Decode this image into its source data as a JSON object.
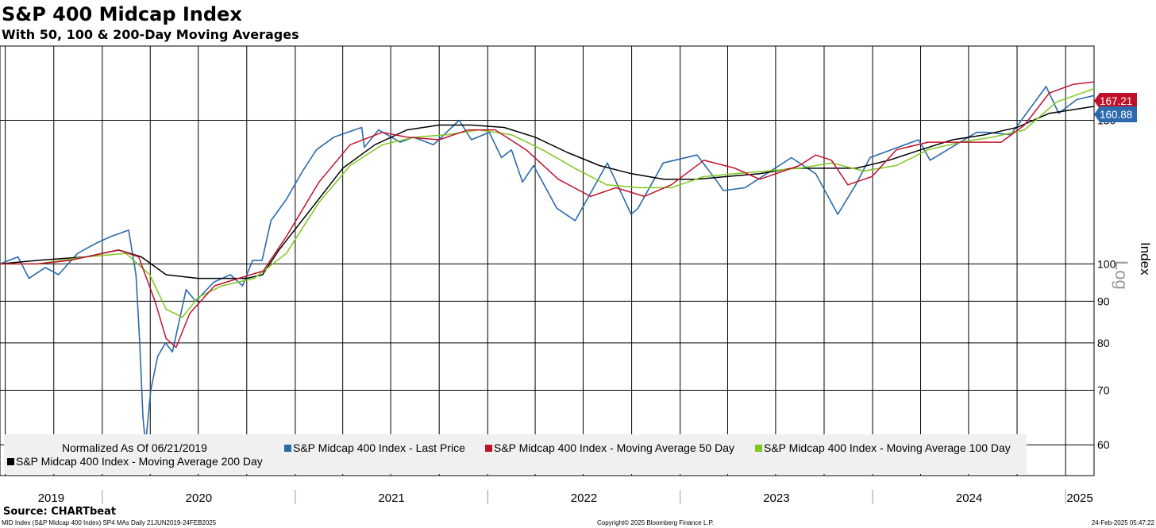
{
  "chart_data": {
    "type": "line",
    "title": "S&P 400 Midcap Index",
    "subtitle": "With 50, 100 & 200-Day Moving Averages",
    "ylabel": "Index",
    "yscale": "log",
    "yscale_label": "Log",
    "ylim": [
      55,
      185
    ],
    "yticks": [
      60,
      70,
      80,
      90,
      100,
      150
    ],
    "x_tick_labels": [
      "2019",
      "2020",
      "2021",
      "2022",
      "2023",
      "2024",
      "2025"
    ],
    "xlim": [
      "2019-06-21",
      "2025-02-24"
    ],
    "grid": true,
    "legend_position": "bottom-left",
    "normalization_note": "Normalized As Of 06/21/2019",
    "series": [
      {
        "name": "S&P Midcap 400 Index - Last Price",
        "color": "#2a6aad",
        "last_value": "160.88",
        "x": [
          "2019-06-21",
          "2019-07-25",
          "2019-08-15",
          "2019-09-15",
          "2019-10-10",
          "2019-11-15",
          "2019-12-20",
          "2020-01-17",
          "2020-02-20",
          "2020-03-05",
          "2020-03-12",
          "2020-03-18",
          "2020-03-23",
          "2020-04-02",
          "2020-04-15",
          "2020-04-30",
          "2020-05-13",
          "2020-06-08",
          "2020-06-26",
          "2020-07-31",
          "2020-08-31",
          "2020-09-23",
          "2020-10-12",
          "2020-10-30",
          "2020-11-16",
          "2020-12-15",
          "2021-01-15",
          "2021-02-10",
          "2021-03-15",
          "2021-05-07",
          "2021-05-12",
          "2021-06-08",
          "2021-07-19",
          "2021-08-13",
          "2021-09-20",
          "2021-11-08",
          "2021-12-01",
          "2022-01-04",
          "2022-01-27",
          "2022-02-15",
          "2022-03-08",
          "2022-03-29",
          "2022-05-12",
          "2022-06-16",
          "2022-08-16",
          "2022-09-30",
          "2022-10-13",
          "2022-11-30",
          "2023-02-02",
          "2023-03-13",
          "2023-03-24",
          "2023-05-04",
          "2023-07-31",
          "2023-09-15",
          "2023-10-27",
          "2023-11-30",
          "2023-12-27",
          "2024-03-28",
          "2024-04-19",
          "2024-07-16",
          "2024-08-05",
          "2024-09-19",
          "2024-11-25",
          "2024-12-19",
          "2025-01-22",
          "2025-02-24"
        ],
        "y": [
          100,
          102,
          96,
          99,
          97,
          103,
          106,
          108,
          110,
          97,
          80,
          65,
          60,
          70,
          77,
          80,
          78,
          93,
          90,
          95,
          97,
          94,
          101,
          101,
          113,
          120,
          130,
          138,
          143,
          147,
          139,
          146,
          141,
          143,
          140,
          150,
          142,
          145,
          135,
          138,
          126,
          132,
          117,
          113,
          133,
          115,
          117,
          133,
          136,
          126,
          123,
          124,
          135,
          129,
          115,
          125,
          135,
          142,
          134,
          145,
          145,
          144,
          165,
          153,
          159,
          160.88
        ]
      },
      {
        "name": "S&P Midcap 400 Index - Moving Average 50 Day",
        "color": "#c0112b",
        "last_value": "167.21",
        "x": [
          "2019-06-21",
          "2019-09-01",
          "2019-11-01",
          "2020-02-01",
          "2020-03-10",
          "2020-04-10",
          "2020-05-01",
          "2020-05-20",
          "2020-06-15",
          "2020-08-01",
          "2020-09-15",
          "2020-11-01",
          "2020-12-15",
          "2021-02-15",
          "2021-04-15",
          "2021-06-15",
          "2021-08-01",
          "2021-10-01",
          "2021-11-25",
          "2022-01-15",
          "2022-03-15",
          "2022-05-15",
          "2022-07-15",
          "2022-09-01",
          "2022-10-25",
          "2022-12-15",
          "2023-02-15",
          "2023-04-15",
          "2023-06-01",
          "2023-08-15",
          "2023-09-15",
          "2023-10-15",
          "2023-11-15",
          "2023-12-31",
          "2024-02-15",
          "2024-04-15",
          "2024-06-30",
          "2024-09-01",
          "2024-10-15",
          "2024-12-01",
          "2025-01-15",
          "2025-02-24"
        ],
        "y": [
          100,
          100,
          101,
          104,
          102,
          90,
          81,
          79,
          87,
          94,
          96,
          98,
          108,
          126,
          140,
          145,
          143,
          142,
          146,
          146,
          138,
          127,
          121,
          124,
          121,
          125,
          134,
          131,
          127,
          132,
          136,
          134,
          125,
          128,
          138,
          141,
          141,
          141,
          148,
          162,
          166,
          167.21
        ]
      },
      {
        "name": "S&P Midcap 400 Index - Moving Average 100 Day",
        "color": "#7ec81e",
        "last_value": "",
        "x": [
          "2019-06-21",
          "2019-09-01",
          "2019-12-01",
          "2020-02-15",
          "2020-03-31",
          "2020-05-01",
          "2020-06-01",
          "2020-07-01",
          "2020-08-15",
          "2020-10-15",
          "2020-12-15",
          "2021-02-15",
          "2021-04-15",
          "2021-06-15",
          "2021-08-15",
          "2021-10-15",
          "2021-12-15",
          "2022-02-15",
          "2022-04-15",
          "2022-06-15",
          "2022-08-15",
          "2022-10-15",
          "2022-12-15",
          "2023-02-15",
          "2023-04-15",
          "2023-06-15",
          "2023-08-15",
          "2023-10-15",
          "2023-12-15",
          "2024-02-15",
          "2024-04-15",
          "2024-06-15",
          "2024-08-15",
          "2024-10-15",
          "2024-12-15",
          "2025-02-24"
        ],
        "y": [
          100,
          100,
          102,
          103,
          97,
          88,
          86,
          91,
          94,
          96,
          103,
          119,
          132,
          140,
          143,
          144,
          146,
          144,
          138,
          131,
          125,
          124,
          124,
          128,
          129,
          130,
          131,
          133,
          130,
          132,
          138,
          141,
          143,
          146,
          158,
          164
        ]
      },
      {
        "name": "S&P Midcap 400 Index - Moving Average 200 Day",
        "color": "#000000",
        "last_value": "",
        "x": [
          "2019-06-21",
          "2019-09-01",
          "2019-12-01",
          "2020-02-01",
          "2020-03-15",
          "2020-05-01",
          "2020-07-01",
          "2020-09-01",
          "2020-10-01",
          "2020-10-31",
          "2020-12-01",
          "2021-02-01",
          "2021-04-01",
          "2021-06-01",
          "2021-08-01",
          "2021-10-01",
          "2021-12-01",
          "2022-02-01",
          "2022-04-01",
          "2022-06-01",
          "2022-08-01",
          "2022-10-01",
          "2022-12-01",
          "2023-02-01",
          "2023-04-01",
          "2023-06-01",
          "2023-08-01",
          "2023-10-01",
          "2023-12-01",
          "2024-02-01",
          "2024-04-01",
          "2024-06-01",
          "2024-08-01",
          "2024-10-01",
          "2024-12-01",
          "2025-02-24"
        ],
        "y": [
          100,
          101,
          102,
          104,
          102,
          97,
          96,
          96,
          96,
          97,
          104,
          117,
          131,
          140,
          146,
          148,
          148,
          147,
          143,
          137,
          132,
          129,
          127,
          127,
          128,
          129,
          131,
          131,
          131,
          134,
          138,
          142,
          144,
          147,
          153,
          156
        ]
      }
    ]
  },
  "footer": {
    "source": "Source: CHARTbeat",
    "description": "MID Index (S&P Midcap 400 Index) SP4 MAs  Daily 21JUN2019-24FEB2025",
    "copyright": "Copyright© 2025 Bloomberg Finance L.P.",
    "timestamp": "24-Feb-2025 05:47:22"
  }
}
